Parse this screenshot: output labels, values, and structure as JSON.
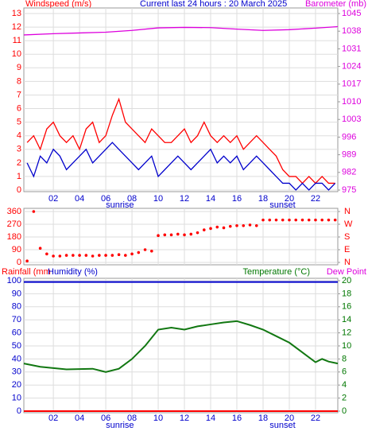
{
  "chart_data": [
    {
      "type": "line",
      "title": "Current last 24 hours : 20 March 2025",
      "ylabel": "Windspeed (m/s)",
      "y2label": "Barometer (mb)",
      "xlim": [
        -0.25,
        23.7
      ],
      "xticks": [
        {
          "value": 2,
          "label": "02"
        },
        {
          "value": 4,
          "label": "04"
        },
        {
          "value": 6,
          "label": "06"
        },
        {
          "value": 8,
          "label": "08"
        },
        10,
        12,
        14,
        16,
        18,
        20,
        22
      ],
      "ylim": [
        0,
        13
      ],
      "yticks": [
        0,
        1,
        2,
        3,
        4,
        5,
        6,
        7,
        8,
        9,
        10,
        11,
        12,
        13
      ],
      "y2lim": [
        975,
        1045
      ],
      "y2ticks": [
        975,
        982,
        989,
        996,
        1003,
        1010,
        1017,
        1024,
        1031,
        1038,
        1045
      ],
      "grid": true,
      "annotations": [
        {
          "text": "sunrise",
          "x": 6.0
        },
        {
          "text": "sunset",
          "x": 18.5
        }
      ],
      "x": [
        0,
        0.5,
        1,
        1.5,
        2,
        2.5,
        3,
        3.5,
        4,
        4.5,
        5,
        5.5,
        6,
        6.5,
        7,
        7.5,
        8,
        8.5,
        9,
        9.5,
        10,
        10.5,
        11,
        11.5,
        12,
        12.5,
        13,
        13.5,
        14,
        14.5,
        15,
        15.5,
        16,
        16.5,
        17,
        17.5,
        18,
        18.5,
        19,
        19.5,
        20,
        20.5,
        21,
        21.5,
        22,
        22.5,
        23,
        23.5
      ],
      "series": [
        {
          "color": "#ff0000",
          "values": [
            3.5,
            4,
            3,
            4.5,
            5,
            4,
            3.5,
            4,
            3,
            4.5,
            5,
            3.5,
            4,
            5.5,
            6.7,
            5,
            4.5,
            4,
            3.5,
            4.5,
            4,
            3.5,
            3.5,
            4,
            4.5,
            3.5,
            4,
            5,
            4,
            3.5,
            4,
            3.5,
            4,
            3,
            3.5,
            4,
            3.5,
            3,
            2.5,
            1.5,
            1,
            1,
            0.5,
            1,
            0.5,
            1,
            0.5,
            0.5
          ]
        },
        {
          "color": "#0000cc",
          "values": [
            2,
            1,
            2.5,
            2,
            3,
            2.5,
            1.5,
            2,
            2.5,
            3,
            2,
            2.5,
            3,
            3.5,
            3,
            2.5,
            2,
            1.5,
            2,
            2.5,
            1,
            1.5,
            2,
            2.5,
            2,
            1.5,
            2,
            2.5,
            3,
            2,
            2.5,
            2,
            2.5,
            1.5,
            2,
            2.5,
            2,
            1.5,
            1,
            0.5,
            0.5,
            0,
            0.5,
            0,
            0.5,
            0.5,
            0,
            0.5
          ]
        },
        {
          "color": "#dd00dd",
          "axis": "y2",
          "x": [
            -0.25,
            2,
            4,
            6,
            8,
            10,
            12,
            14,
            16,
            18,
            20,
            22,
            23.7
          ],
          "values": [
            1036.5,
            1037,
            1037.3,
            1037.6,
            1038.3,
            1039.3,
            1039.5,
            1039.4,
            1038.8,
            1038.3,
            1038.6,
            1039.2,
            1039.8
          ]
        }
      ]
    },
    {
      "type": "scatter",
      "xlim": [
        -0.25,
        23.7
      ],
      "xticks": [
        {
          "value": 2,
          "label": "02"
        },
        {
          "value": 4,
          "label": "04"
        },
        {
          "value": 6,
          "label": "06"
        },
        {
          "value": 8,
          "label": "08"
        },
        10,
        12,
        14,
        16,
        18,
        20,
        22
      ],
      "ylim": [
        0,
        360
      ],
      "yticks": [
        0,
        90,
        180,
        270,
        360
      ],
      "y2lim": [
        0,
        360
      ],
      "y2ticks": [
        {
          "value": 0,
          "label": "N"
        },
        {
          "value": 90,
          "label": "E"
        },
        {
          "value": 180,
          "label": "S"
        },
        {
          "value": 270,
          "label": "W"
        },
        {
          "value": 360,
          "label": "N"
        }
      ],
      "grid": true,
      "x": [
        0,
        0.5,
        1,
        1.5,
        2,
        2.5,
        3,
        3.5,
        4,
        4.5,
        5,
        5.5,
        6,
        6.5,
        7,
        7.5,
        8,
        8.5,
        9,
        9.5,
        10,
        10.5,
        11,
        11.5,
        12,
        12.5,
        13,
        13.5,
        14,
        14.5,
        15,
        15.5,
        16,
        16.5,
        17,
        17.5,
        18,
        18.5,
        19,
        19.5,
        20,
        20.5,
        21,
        21.5,
        22,
        22.5,
        23,
        23.5
      ],
      "series": [
        {
          "color": "#ff0000",
          "values": [
            10,
            360,
            100,
            60,
            45,
            45,
            50,
            50,
            50,
            50,
            45,
            50,
            50,
            50,
            55,
            50,
            60,
            70,
            90,
            80,
            190,
            195,
            195,
            200,
            195,
            200,
            210,
            230,
            240,
            250,
            245,
            255,
            260,
            260,
            265,
            260,
            300,
            300,
            300,
            300,
            300,
            300,
            300,
            300,
            300,
            300,
            300,
            300
          ]
        }
      ]
    },
    {
      "type": "line",
      "ylabel": "Humidity (%)",
      "ylabel2": "Rainfall (mm",
      "y2label": "Temperature (°C)",
      "y2label2": "Dew Point",
      "xlim": [
        -0.25,
        23.7
      ],
      "xticks": [
        {
          "value": 2,
          "label": "02"
        },
        {
          "value": 4,
          "label": "04"
        },
        {
          "value": 6,
          "label": "06"
        },
        {
          "value": 8,
          "label": "08"
        },
        10,
        12,
        14,
        16,
        18,
        20,
        22
      ],
      "ylim": [
        0,
        100
      ],
      "yticks": [
        0,
        10,
        20,
        30,
        40,
        50,
        60,
        70,
        80,
        90,
        100
      ],
      "y2lim": [
        0,
        20
      ],
      "y2ticks": [
        0,
        2,
        4,
        6,
        8,
        10,
        12,
        14,
        16,
        18,
        20
      ],
      "grid": true,
      "annotations": [
        {
          "text": "sunrise",
          "x": 6.0
        },
        {
          "text": "sunset",
          "x": 18.5
        }
      ],
      "series": [
        {
          "color": "#0000cc",
          "x": [
            -0.25,
            23.7
          ],
          "values": [
            99,
            99
          ]
        },
        {
          "color": "#ff0000",
          "x": [
            -0.25,
            23.7
          ],
          "values": [
            0,
            0
          ]
        },
        {
          "color": "#117711",
          "axis": "y2",
          "x": [
            -0.25,
            1,
            3,
            5,
            6,
            7,
            8,
            9,
            10,
            11,
            12,
            13,
            14,
            15,
            16,
            17,
            18,
            19,
            20,
            21,
            22,
            22.5,
            23,
            23.7
          ],
          "values": [
            7.3,
            6.8,
            6.4,
            6.5,
            6.0,
            6.5,
            8,
            10,
            12.5,
            12.8,
            12.5,
            13,
            13.3,
            13.6,
            13.8,
            13.2,
            12.5,
            11.5,
            10.5,
            9,
            7.5,
            8,
            7.6,
            7.3
          ]
        }
      ]
    }
  ]
}
